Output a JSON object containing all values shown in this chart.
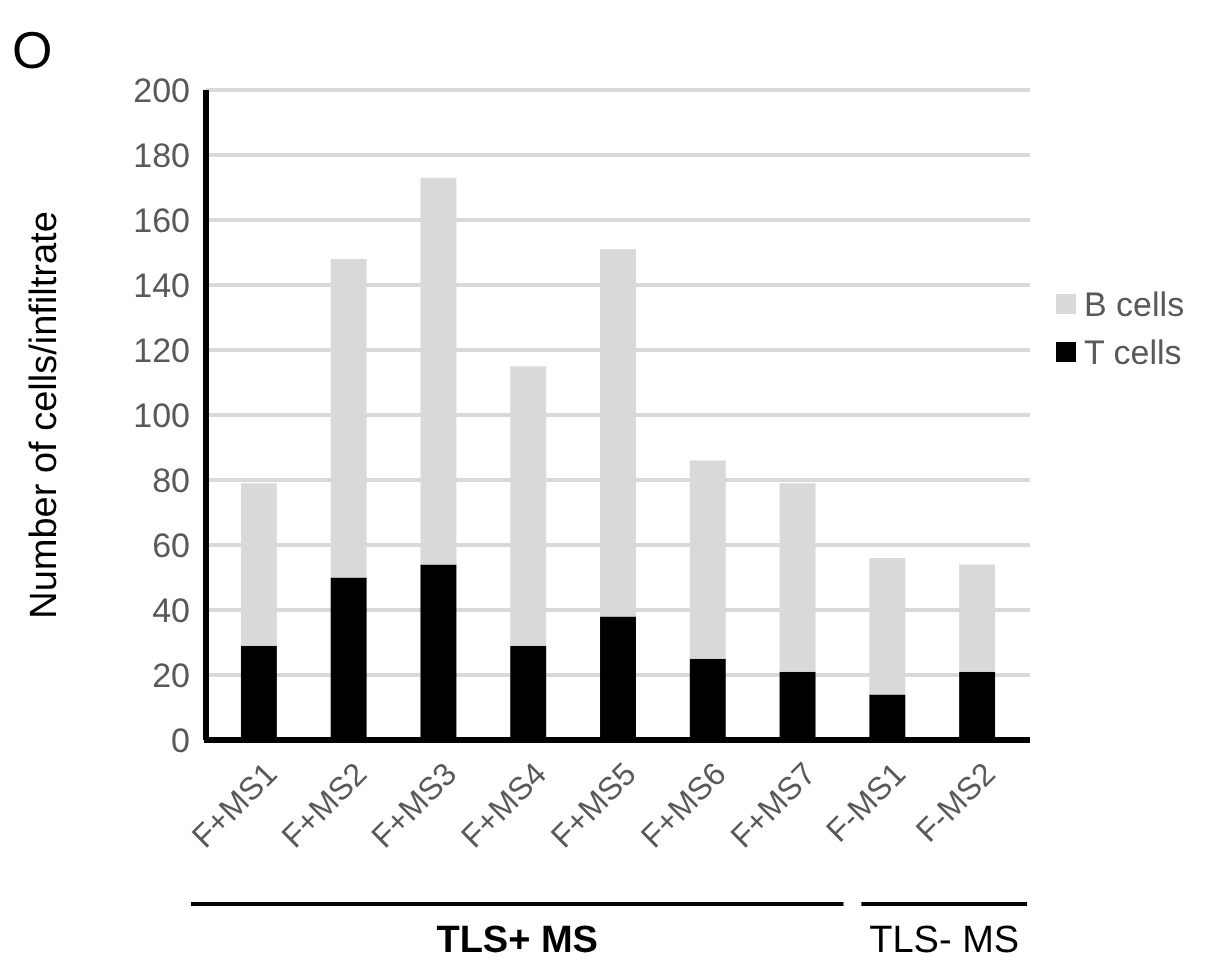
{
  "chart_data": {
    "type": "bar",
    "stacked": true,
    "ylabel": "Number of cells/infiltrate",
    "categories": [
      "F+MS1",
      "F+MS2",
      "F+MS3",
      "F+MS4",
      "F+MS5",
      "F+MS6",
      "F+MS7",
      "F-MS1",
      "F-MS2"
    ],
    "series": [
      {
        "name": "T cells",
        "color": "#000000",
        "values": [
          29,
          50,
          54,
          29,
          38,
          25,
          21,
          14,
          21
        ]
      },
      {
        "name": "B cells",
        "color": "#d9d9d9",
        "values": [
          50,
          98,
          119,
          86,
          113,
          61,
          58,
          42,
          33
        ]
      }
    ],
    "ylim": [
      0,
      200
    ],
    "yticks": [
      0,
      20,
      40,
      60,
      80,
      100,
      120,
      140,
      160,
      180,
      200
    ],
    "grid": "y",
    "legend": "right",
    "annotations": [
      "O",
      "TLS+ MS",
      "TLS- MS"
    ]
  }
}
